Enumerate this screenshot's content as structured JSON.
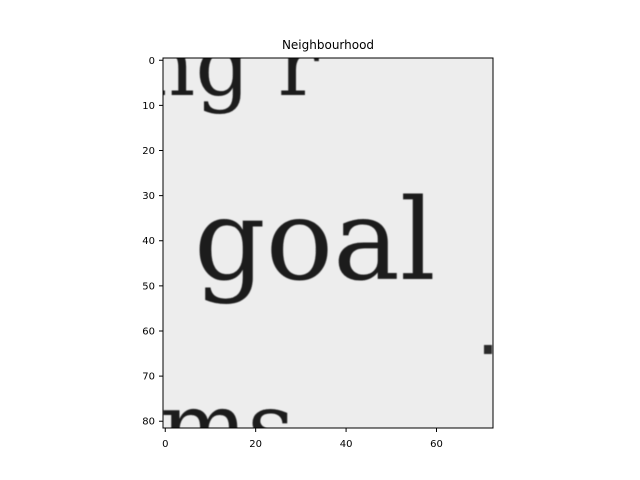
{
  "chart_data": {
    "type": "heatmap",
    "title": "Neighbourhood",
    "colormap": "gray",
    "xlim": [
      -0.5,
      72.5
    ],
    "ylim": [
      81.5,
      -0.5
    ],
    "x_ticks": [
      0,
      20,
      40,
      60
    ],
    "y_ticks": [
      0,
      10,
      20,
      30,
      40,
      50,
      60,
      70,
      80
    ],
    "grid": false,
    "legend": "none",
    "image_text": {
      "top_fragment": "ng r",
      "center_word": "goal",
      "bottom_fragment": "ms"
    },
    "colors": {
      "paper": "#ededed",
      "ink": "#1d1d1d",
      "axes": "#000000"
    }
  }
}
